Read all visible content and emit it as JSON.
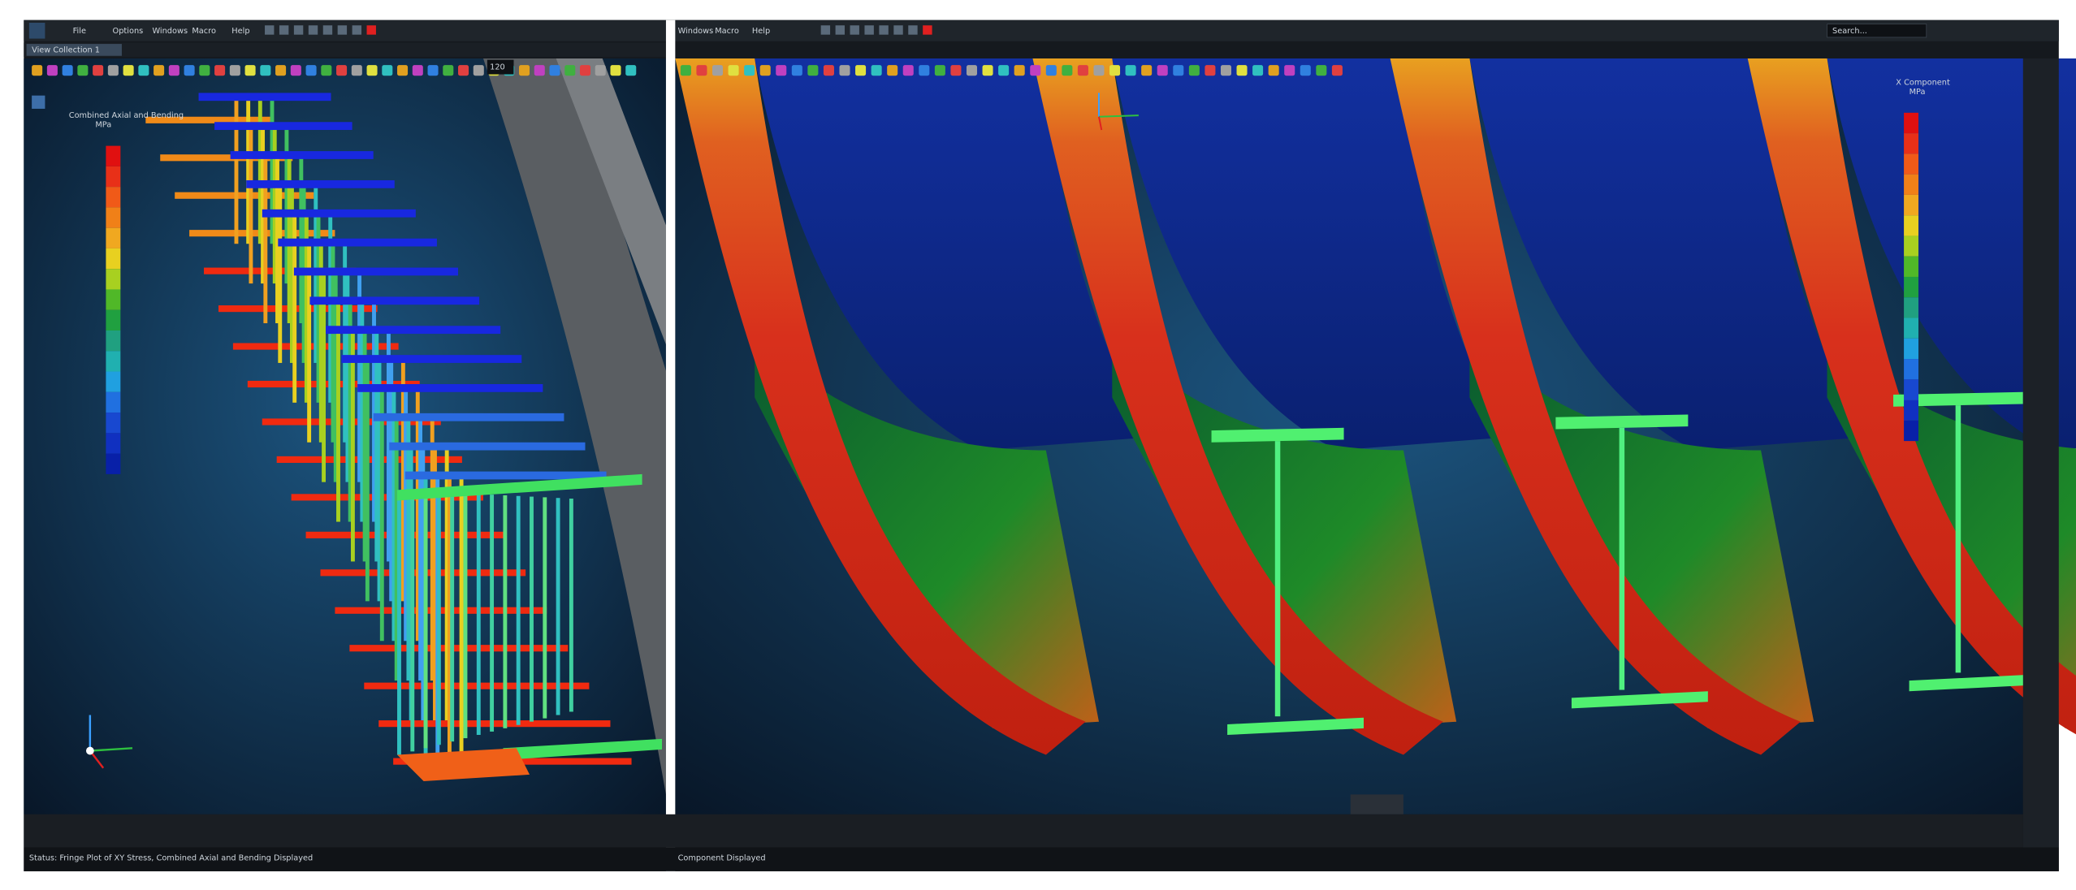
{
  "menu_left": [
    "File",
    "Options",
    "Windows",
    "Macro",
    "Help"
  ],
  "menu_right": [
    "Windows",
    "Macro",
    "Help"
  ],
  "tab": "View Collection 1",
  "zoom": "120",
  "search": "Search...",
  "left_legend": {
    "title": "Combined Axial and Bending",
    "unit": "MPa"
  },
  "right_legend": {
    "title": "X Component",
    "unit": "MPa"
  },
  "status_left": "Status: Fringe Plot of XY Stress, Combined Axial and Bending Displayed",
  "status_right": "Component Displayed"
}
